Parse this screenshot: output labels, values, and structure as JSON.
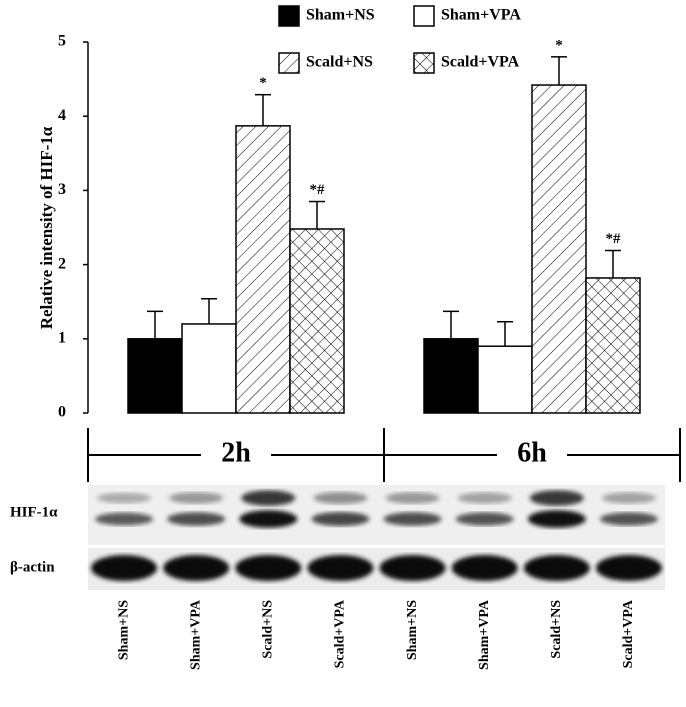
{
  "chart_data": {
    "type": "bar",
    "y_label": "Relative intensity of HIF-1α",
    "categories": [
      "2h",
      "6h"
    ],
    "series": [
      {
        "name": "Sham+NS",
        "color": "#000000",
        "hatch": "none",
        "values": [
          1.0,
          1.0
        ],
        "errors": [
          0.37,
          0.37
        ],
        "annotations": [
          null,
          null
        ]
      },
      {
        "name": "Sham+VPA",
        "color": "#ffffff",
        "hatch": "none",
        "values": [
          1.2,
          0.9
        ],
        "errors": [
          0.34,
          0.33
        ],
        "annotations": [
          null,
          null
        ]
      },
      {
        "name": "Scald+NS",
        "color": "#ffffff",
        "hatch": "diagonal",
        "values": [
          3.87,
          4.42
        ],
        "errors": [
          0.42,
          0.38
        ],
        "annotations": [
          "*",
          "*"
        ]
      },
      {
        "name": "Scald+VPA",
        "color": "#ffffff",
        "hatch": "crosshatch",
        "values": [
          2.48,
          1.82
        ],
        "errors": [
          0.37,
          0.37
        ],
        "annotations": [
          "*#",
          "*#"
        ]
      }
    ],
    "ylim": [
      0,
      5
    ],
    "yticks": [
      0,
      1,
      2,
      3,
      4,
      5
    ],
    "grid": false
  },
  "blot": {
    "rows": [
      "HIF-1α",
      "β-actin"
    ],
    "lanes": [
      "Sham+NS",
      "Sham+VPA",
      "Scald+NS",
      "Scald+VPA",
      "Sham+NS",
      "Sham+VPA",
      "Scald+NS",
      "Scald+VPA"
    ]
  }
}
